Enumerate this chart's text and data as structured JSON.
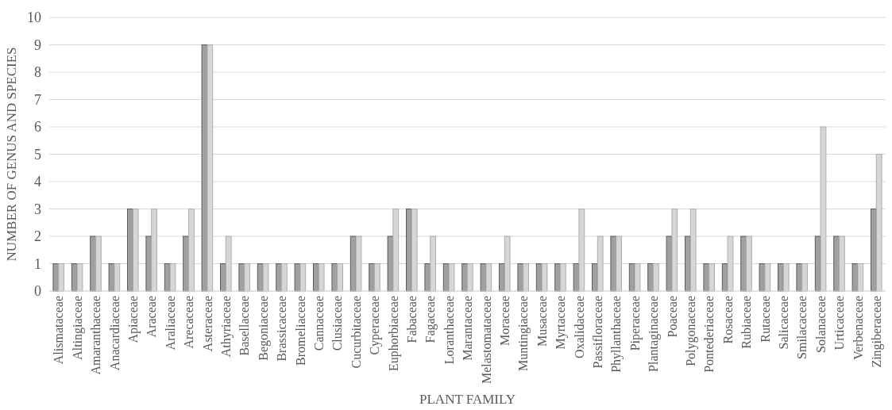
{
  "chart_data": {
    "type": "bar",
    "xlabel": "PLANT FAMILY",
    "ylabel": "NUMBER OF GENUS AND SPECIES",
    "categories": [
      "Alismataceae",
      "Altingiaceae",
      "Amaranthaceae",
      "Anacardiaceae",
      "Apiaceae",
      "Araceae",
      "Araliaceae",
      "Arecaceae",
      "Asteraceae",
      "Athyriaceae",
      "Basellaceae",
      "Begoniaceae",
      "Brassicaceae",
      "Bromeliaceae",
      "Cannaceae",
      "Clusiaceae",
      "Cucurbitaceae",
      "Cyperaceae",
      "Euphorbiaceae",
      "Fabaceae",
      "Fagaceae",
      "Loranthaceae",
      "Marantaceae",
      "Melastomataceae",
      "Moraceae",
      "Muntingiaceae",
      "Musaceae",
      "Myrtaceae",
      "Oxalidaceae",
      "Passifloraceae",
      "Phyllanthaceae",
      "Piperaceae",
      "Plantaginaceae",
      "Poaceae",
      "Polygonaceae",
      "Pontederiaceae",
      "Rosaceae",
      "Rubiaceae",
      "Rutaceae",
      "Salicaceae",
      "Smilacaceae",
      "Solanaceae",
      "Urticaceae",
      "Verbenaceae",
      "Zingiberaceae"
    ],
    "series": [
      {
        "color": "#a0a0a0",
        "values": [
          1,
          1,
          2,
          1,
          3,
          2,
          1,
          2,
          9,
          1,
          1,
          1,
          1,
          1,
          1,
          1,
          2,
          1,
          2,
          3,
          1,
          1,
          1,
          1,
          1,
          1,
          1,
          1,
          1,
          1,
          2,
          1,
          1,
          2,
          2,
          1,
          1,
          2,
          1,
          1,
          1,
          2,
          2,
          1,
          3
        ]
      },
      {
        "color": "#d6d6d6",
        "values": [
          1,
          1,
          2,
          1,
          3,
          3,
          1,
          3,
          9,
          2,
          1,
          1,
          1,
          1,
          1,
          1,
          2,
          1,
          3,
          3,
          2,
          1,
          1,
          1,
          2,
          1,
          1,
          1,
          3,
          2,
          2,
          1,
          1,
          3,
          3,
          1,
          2,
          2,
          1,
          1,
          1,
          6,
          2,
          1,
          5
        ]
      }
    ],
    "ylim": [
      0,
      10
    ],
    "yticks": [
      0,
      1,
      2,
      3,
      4,
      5,
      6,
      7,
      8,
      9,
      10
    ],
    "grid": "y",
    "legend": false
  }
}
